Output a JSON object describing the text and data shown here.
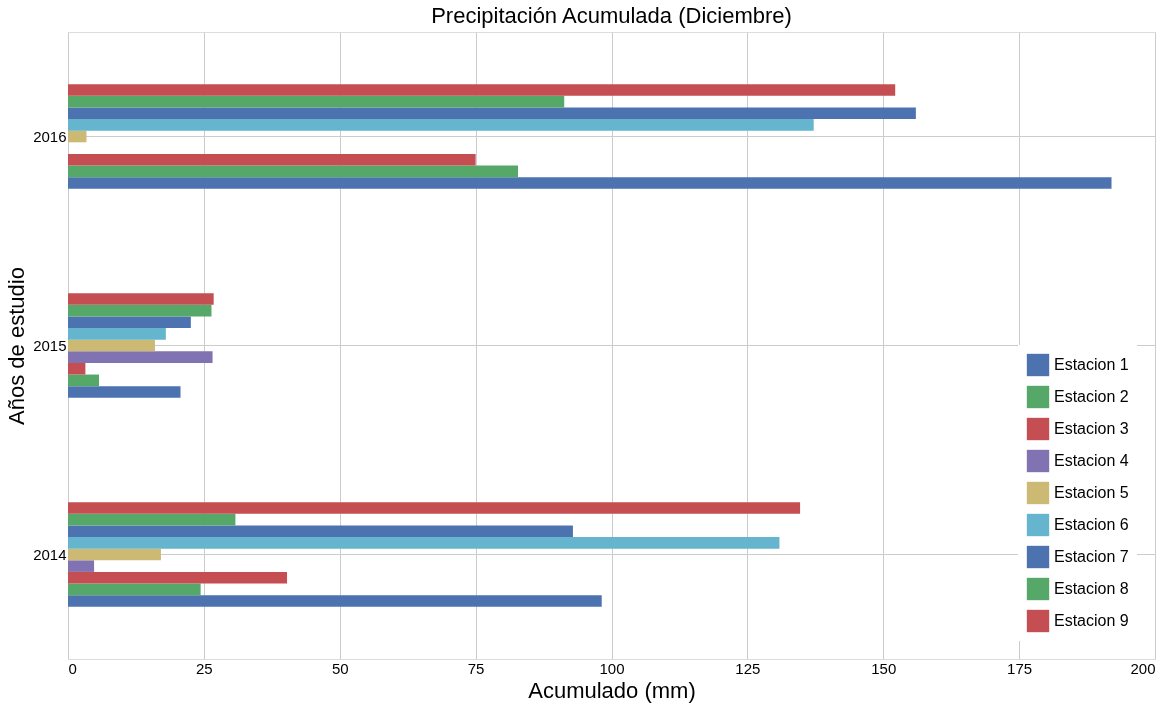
{
  "chart_data": {
    "type": "bar",
    "orientation": "horizontal",
    "title": "Precipitación Acumulada (Diciembre)",
    "xlabel": "Acumulado (mm)",
    "ylabel": "Años de estudio",
    "categories": [
      "2016",
      "2015",
      "2014"
    ],
    "xlim": [
      0,
      200
    ],
    "xticks": [
      0,
      25,
      50,
      75,
      100,
      125,
      150,
      175,
      200
    ],
    "grid": true,
    "legend": "bottom right",
    "series": [
      {
        "name": "Estacion 1",
        "color": "#4c72b0",
        "values": [
          192,
          20.7,
          98.2
        ]
      },
      {
        "name": "Estacion 2",
        "color": "#55a868",
        "values": [
          82.8,
          5.7,
          24.4
        ]
      },
      {
        "name": "Estacion 3",
        "color": "#c44e52",
        "values": [
          75,
          3.2,
          40.3
        ]
      },
      {
        "name": "Estacion 4",
        "color": "#8172b2",
        "values": [
          null,
          26.6,
          4.8
        ]
      },
      {
        "name": "Estacion 5",
        "color": "#ccb974",
        "values": [
          3.4,
          16,
          17.1
        ]
      },
      {
        "name": "Estacion 6",
        "color": "#64b5cd",
        "values": [
          137.2,
          18,
          130.9
        ]
      },
      {
        "name": "Estacion 7",
        "color": "#4c72b0",
        "values": [
          156,
          22.6,
          92.9
        ]
      },
      {
        "name": "Estacion 8",
        "color": "#55a868",
        "values": [
          91.3,
          26.4,
          30.8
        ]
      },
      {
        "name": "Estacion 9",
        "color": "#c44e52",
        "values": [
          152.2,
          26.8,
          134.7
        ]
      }
    ]
  }
}
